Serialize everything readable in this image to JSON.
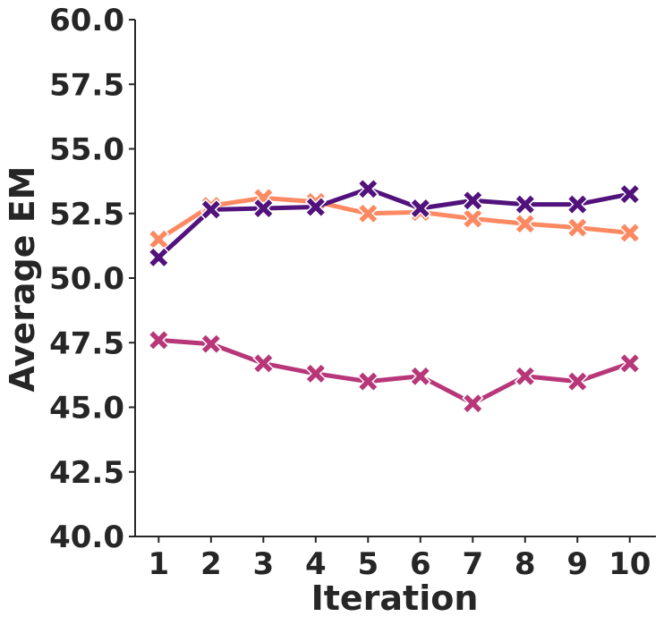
{
  "chart_data": {
    "type": "line",
    "title": "",
    "xlabel": "Iteration",
    "ylabel": "Average EM",
    "x": [
      1,
      2,
      3,
      4,
      5,
      6,
      7,
      8,
      9,
      10
    ],
    "xticks": [
      "1",
      "2",
      "3",
      "4",
      "5",
      "6",
      "7",
      "8",
      "9",
      "10"
    ],
    "yticks": [
      "40.0",
      "42.5",
      "45.0",
      "47.5",
      "50.0",
      "52.5",
      "55.0",
      "57.5",
      "60.0"
    ],
    "ylim": [
      40,
      60
    ],
    "xlim": [
      0.55,
      10.5
    ],
    "grid": false,
    "marker": "X",
    "series": [
      {
        "color": "#fc8961",
        "values": [
          51.5,
          52.8,
          53.1,
          52.95,
          52.5,
          52.55,
          52.3,
          52.1,
          51.95,
          51.75
        ]
      },
      {
        "color": "#51127c",
        "values": [
          50.8,
          52.65,
          52.7,
          52.75,
          53.45,
          52.7,
          53.0,
          52.85,
          52.85,
          53.25
        ]
      },
      {
        "color": "#b73779",
        "values": [
          47.6,
          47.45,
          46.7,
          46.3,
          46.0,
          46.2,
          45.15,
          46.2,
          46.0,
          46.7
        ]
      }
    ]
  }
}
